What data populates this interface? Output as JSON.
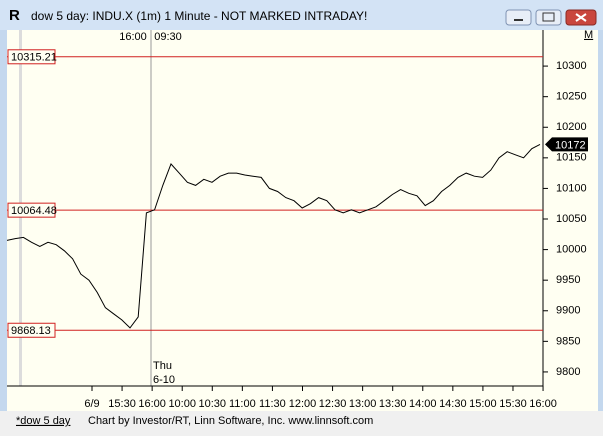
{
  "window": {
    "icon": "R",
    "title": "dow 5 day: INDU.X (1m) 1 Minute - NOT MARKED INTRADAY!"
  },
  "chart_data": {
    "type": "line",
    "session_labels": [
      "16:00",
      "09:30"
    ],
    "date_annotation": [
      "Thu",
      "6-10"
    ],
    "x_labels": [
      "6/9",
      "15:30",
      "16:00",
      "10:00",
      "10:30",
      "11:00",
      "11:30",
      "12:00",
      "12:30",
      "13:00",
      "13:30",
      "14:00",
      "14:30",
      "15:00",
      "15:30",
      "16:00"
    ],
    "series": [
      {
        "name": "INDU.X",
        "color": "#000000",
        "values": [
          10015,
          10018,
          10020,
          10012,
          10005,
          10012,
          10008,
          9998,
          9985,
          9960,
          9950,
          9930,
          9905,
          9895,
          9885,
          9872,
          9890,
          10060,
          10065,
          10105,
          10140,
          10125,
          10110,
          10105,
          10115,
          10110,
          10120,
          10125,
          10125,
          10122,
          10120,
          10118,
          10100,
          10095,
          10085,
          10080,
          10068,
          10075,
          10085,
          10080,
          10065,
          10060,
          10065,
          10060,
          10065,
          10070,
          10080,
          10090,
          10098,
          10092,
          10088,
          10072,
          10080,
          10095,
          10105,
          10118,
          10125,
          10120,
          10118,
          10130,
          10150,
          10160,
          10155,
          10150,
          10165,
          10172
        ]
      }
    ],
    "last_value": 10172,
    "reference_lines": [
      10315.21,
      10064.48,
      9868.13
    ],
    "reference_color": "#d02020",
    "ylim": [
      9777,
      10359
    ],
    "yticks": [
      9800,
      9850,
      9900,
      9950,
      10000,
      10050,
      10100,
      10150,
      10200,
      10250,
      10300
    ]
  },
  "status_bar": {
    "tab": "*dow 5 day",
    "credit": "Chart by Investor/RT, Linn Software, Inc. www.linnsoft.com"
  }
}
